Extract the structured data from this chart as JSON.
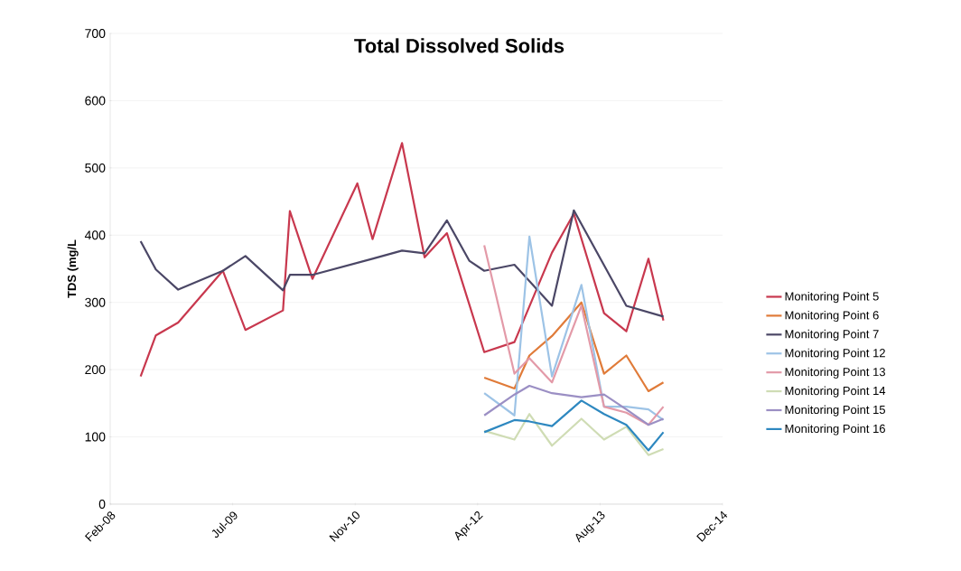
{
  "chart_data": {
    "type": "line",
    "title": "Total Dissolved Solids",
    "ylabel": "TDS (mg/L",
    "xlim": [
      "2008-02-28",
      "2014-12-28"
    ],
    "xticks": [
      {
        "value": "2008-02-28",
        "label": "Feb-08"
      },
      {
        "value": "2009-07-11",
        "label": "Jul-09"
      },
      {
        "value": "2010-11-22",
        "label": "Nov-10"
      },
      {
        "value": "2012-04-04",
        "label": "Apr-12"
      },
      {
        "value": "2013-08-16",
        "label": "Aug-13"
      },
      {
        "value": "2014-12-28",
        "label": "Dec-14"
      }
    ],
    "ylim": [
      0,
      700
    ],
    "yticks": [
      0,
      100,
      200,
      300,
      400,
      500,
      600,
      700
    ],
    "grid": "y",
    "legend": "right",
    "series": [
      {
        "name": "Monitoring Point 5",
        "color": "#c8384e",
        "x": [
          "2008-07",
          "2008-09",
          "2008-12",
          "2009-06",
          "2009-09",
          "2010-02",
          "2010-03",
          "2010-06",
          "2010-12",
          "2011-02",
          "2011-06",
          "2011-09",
          "2011-12",
          "2012-05",
          "2012-09",
          "2013-02",
          "2013-05",
          "2013-09",
          "2013-12",
          "2014-03",
          "2014-05"
        ],
        "values": [
          190,
          251,
          270,
          347,
          259,
          288,
          436,
          335,
          477,
          394,
          537,
          367,
          403,
          226,
          241,
          374,
          432,
          284,
          257,
          365,
          273
        ]
      },
      {
        "name": "Monitoring Point 6",
        "color": "#e07b39",
        "x": [
          "2012-05",
          "2012-09",
          "2012-11",
          "2013-02",
          "2013-06",
          "2013-09",
          "2013-12",
          "2014-03",
          "2014-05"
        ],
        "values": [
          188,
          172,
          221,
          250,
          300,
          194,
          221,
          168,
          181
        ]
      },
      {
        "name": "Monitoring Point 7",
        "color": "#4b4766",
        "x": [
          "2008-07",
          "2008-09",
          "2008-12",
          "2009-06",
          "2009-09",
          "2010-02",
          "2010-03",
          "2010-06",
          "2011-02",
          "2011-06",
          "2011-09",
          "2011-12",
          "2012-03",
          "2012-05",
          "2012-09",
          "2013-02",
          "2013-05",
          "2013-12",
          "2014-05"
        ],
        "values": [
          391,
          349,
          319,
          347,
          369,
          318,
          341,
          341,
          365,
          377,
          373,
          422,
          362,
          347,
          356,
          295,
          437,
          295,
          279
        ]
      },
      {
        "name": "Monitoring Point 12",
        "color": "#9dc3e6",
        "x": [
          "2012-05",
          "2012-09",
          "2012-11",
          "2013-02",
          "2013-06",
          "2013-09",
          "2013-12",
          "2014-03",
          "2014-05"
        ],
        "values": [
          165,
          132,
          398,
          190,
          326,
          145,
          145,
          141,
          125
        ]
      },
      {
        "name": "Monitoring Point 13",
        "color": "#e39aa8",
        "x": [
          "2012-05",
          "2012-09",
          "2012-11",
          "2013-02",
          "2013-06",
          "2013-09",
          "2013-12",
          "2014-03",
          "2014-05"
        ],
        "values": [
          385,
          194,
          217,
          181,
          295,
          145,
          136,
          118,
          145
        ]
      },
      {
        "name": "Monitoring Point 14",
        "color": "#cfdcb4",
        "x": [
          "2012-05",
          "2012-09",
          "2012-11",
          "2013-02",
          "2013-06",
          "2013-09",
          "2013-12",
          "2014-03",
          "2014-05"
        ],
        "values": [
          109,
          96,
          134,
          87,
          127,
          96,
          115,
          73,
          82
        ]
      },
      {
        "name": "Monitoring Point 15",
        "color": "#9b8fc4",
        "x": [
          "2012-05",
          "2012-09",
          "2012-11",
          "2013-02",
          "2013-06",
          "2013-09",
          "2013-12",
          "2014-03",
          "2014-05"
        ],
        "values": [
          132,
          163,
          176,
          165,
          159,
          163,
          141,
          118,
          127
        ]
      },
      {
        "name": "Monitoring Point 16",
        "color": "#2e88c0",
        "x": [
          "2012-05",
          "2012-09",
          "2012-11",
          "2013-02",
          "2013-06",
          "2013-09",
          "2013-12",
          "2014-03",
          "2014-05"
        ],
        "values": [
          107,
          125,
          123,
          116,
          154,
          134,
          118,
          80,
          107
        ]
      }
    ]
  }
}
